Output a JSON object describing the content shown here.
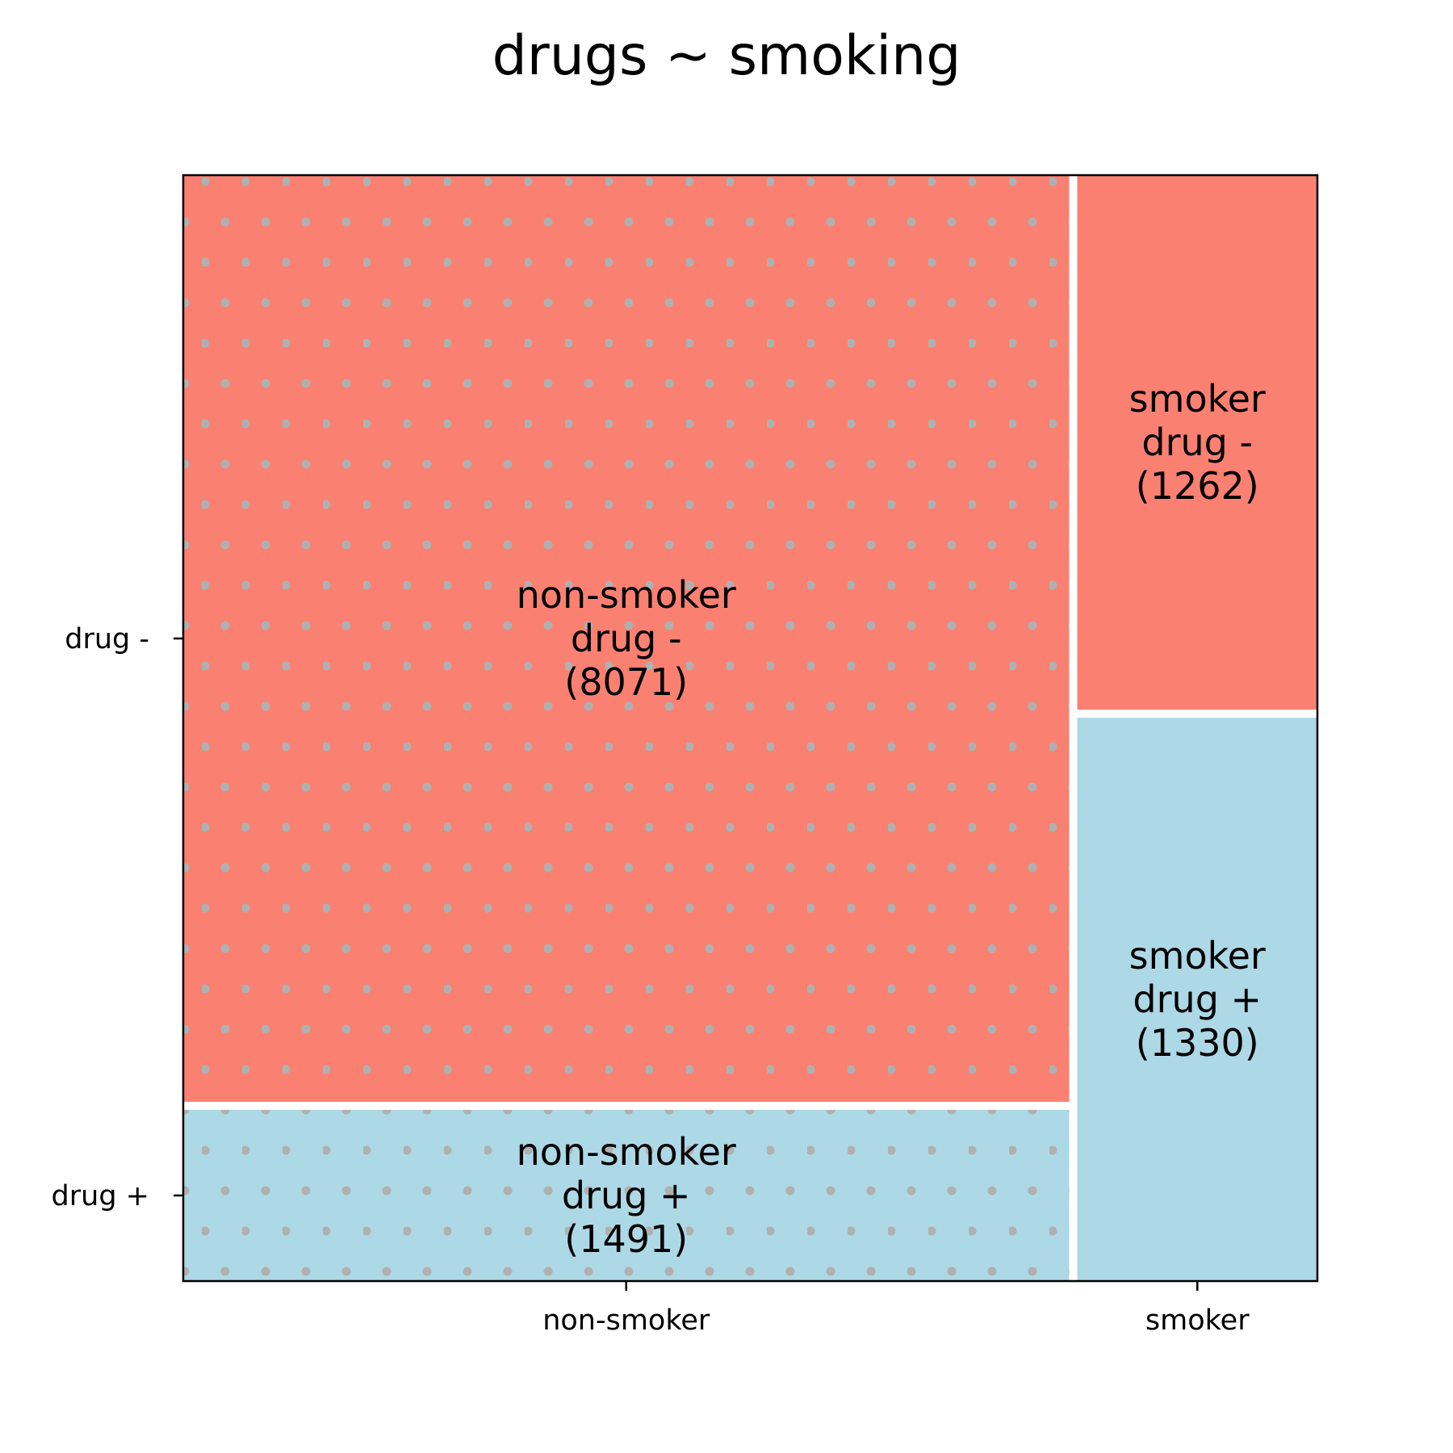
{
  "chart_data": {
    "type": "mosaic",
    "title": "drugs ~ smoking",
    "x_categories": [
      "non-smoker",
      "smoker"
    ],
    "y_categories": [
      "drug -",
      "drug +"
    ],
    "cells": [
      {
        "x": "non-smoker",
        "y": "drug -",
        "label": [
          "non-smoker",
          "drug -",
          "(8071)"
        ],
        "count": 8071,
        "color": "#fa8072",
        "pattern": "dots"
      },
      {
        "x": "non-smoker",
        "y": "drug +",
        "label": [
          "non-smoker",
          "drug +",
          "(1491)"
        ],
        "count": 1491,
        "color": "#add8e6",
        "pattern": "dots"
      },
      {
        "x": "smoker",
        "y": "drug -",
        "label": [
          "smoker",
          "drug -",
          "(1262)"
        ],
        "count": 1262,
        "color": "#fa8072",
        "pattern": "none"
      },
      {
        "x": "smoker",
        "y": "drug +",
        "label": [
          "smoker",
          "drug +",
          "(1330)"
        ],
        "count": 1330,
        "color": "#add8e6",
        "pattern": "none"
      }
    ],
    "pattern_color": "#b0b0b0",
    "grid": false
  }
}
